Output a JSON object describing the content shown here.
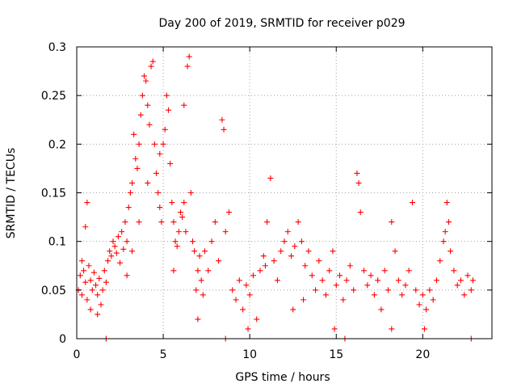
{
  "chart_data": {
    "type": "scatter",
    "title": "Day 200 of 2019, SRMTID for receiver p029",
    "xlabel": "GPS time / hours",
    "ylabel": "SRMTID / TECUs",
    "xlim": [
      0,
      24
    ],
    "ylim": [
      0,
      0.3
    ],
    "x_ticks": [
      0,
      5,
      10,
      15,
      20
    ],
    "x_tick_labels": [
      "0",
      "5",
      "10",
      "15",
      "20"
    ],
    "y_ticks": [
      0,
      0.05,
      0.1,
      0.15,
      0.2,
      0.25,
      0.3
    ],
    "y_tick_labels": [
      "0",
      "0.05",
      "0.1",
      "0.15",
      "0.2",
      "0.25",
      "0.3"
    ],
    "grid": true,
    "marker": "+",
    "color": "#ff0000",
    "series": [
      {
        "name": "SRMTID",
        "points": [
          [
            0.1,
            0.05
          ],
          [
            0.2,
            0.065
          ],
          [
            0.3,
            0.045
          ],
          [
            0.4,
            0.07
          ],
          [
            0.5,
            0.058
          ],
          [
            0.6,
            0.04
          ],
          [
            0.7,
            0.075
          ],
          [
            0.8,
            0.06
          ],
          [
            0.9,
            0.05
          ],
          [
            1.0,
            0.068
          ],
          [
            1.1,
            0.055
          ],
          [
            1.2,
            0.045
          ],
          [
            1.3,
            0.062
          ],
          [
            1.4,
            0.035
          ],
          [
            1.5,
            0.05
          ],
          [
            1.6,
            0.07
          ],
          [
            1.7,
            0.058
          ],
          [
            1.8,
            0.08
          ],
          [
            1.9,
            0.09
          ],
          [
            2.0,
            0.085
          ],
          [
            0.3,
            0.08
          ],
          [
            0.5,
            0.115
          ],
          [
            0.6,
            0.14
          ],
          [
            0.8,
            0.03
          ],
          [
            1.2,
            0.025
          ],
          [
            1.7,
            0.0
          ],
          [
            2.1,
            0.1
          ],
          [
            2.2,
            0.095
          ],
          [
            2.3,
            0.088
          ],
          [
            2.4,
            0.105
          ],
          [
            2.5,
            0.078
          ],
          [
            2.6,
            0.11
          ],
          [
            2.7,
            0.092
          ],
          [
            2.8,
            0.12
          ],
          [
            2.9,
            0.1
          ],
          [
            3.0,
            0.135
          ],
          [
            3.1,
            0.15
          ],
          [
            3.2,
            0.16
          ],
          [
            3.3,
            0.21
          ],
          [
            3.4,
            0.185
          ],
          [
            3.5,
            0.175
          ],
          [
            3.6,
            0.2
          ],
          [
            3.7,
            0.23
          ],
          [
            3.8,
            0.25
          ],
          [
            3.9,
            0.27
          ],
          [
            4.0,
            0.265
          ],
          [
            4.1,
            0.24
          ],
          [
            4.2,
            0.22
          ],
          [
            4.3,
            0.28
          ],
          [
            4.4,
            0.285
          ],
          [
            4.5,
            0.2
          ],
          [
            4.6,
            0.17
          ],
          [
            4.7,
            0.15
          ],
          [
            4.8,
            0.135
          ],
          [
            4.9,
            0.12
          ],
          [
            5.0,
            0.2
          ],
          [
            5.1,
            0.215
          ],
          [
            5.2,
            0.25
          ],
          [
            5.3,
            0.235
          ],
          [
            5.4,
            0.18
          ],
          [
            5.5,
            0.14
          ],
          [
            5.6,
            0.12
          ],
          [
            5.7,
            0.1
          ],
          [
            5.8,
            0.095
          ],
          [
            5.9,
            0.11
          ],
          [
            6.0,
            0.13
          ],
          [
            6.1,
            0.125
          ],
          [
            6.2,
            0.14
          ],
          [
            6.3,
            0.11
          ],
          [
            6.4,
            0.28
          ],
          [
            6.5,
            0.29
          ],
          [
            6.6,
            0.15
          ],
          [
            6.7,
            0.1
          ],
          [
            6.8,
            0.09
          ],
          [
            6.9,
            0.05
          ],
          [
            7.0,
            0.07
          ],
          [
            7.1,
            0.085
          ],
          [
            7.2,
            0.06
          ],
          [
            7.3,
            0.045
          ],
          [
            7.4,
            0.09
          ],
          [
            7.6,
            0.07
          ],
          [
            7.8,
            0.1
          ],
          [
            8.0,
            0.12
          ],
          [
            8.2,
            0.08
          ],
          [
            8.4,
            0.225
          ],
          [
            8.5,
            0.215
          ],
          [
            8.6,
            0.11
          ],
          [
            8.8,
            0.13
          ],
          [
            9.0,
            0.05
          ],
          [
            9.2,
            0.04
          ],
          [
            9.4,
            0.06
          ],
          [
            9.6,
            0.03
          ],
          [
            9.8,
            0.055
          ],
          [
            10.0,
            0.045
          ],
          [
            10.2,
            0.065
          ],
          [
            10.4,
            0.02
          ],
          [
            10.6,
            0.07
          ],
          [
            10.8,
            0.085
          ],
          [
            11.0,
            0.12
          ],
          [
            11.2,
            0.165
          ],
          [
            11.4,
            0.08
          ],
          [
            11.6,
            0.06
          ],
          [
            11.8,
            0.09
          ],
          [
            12.0,
            0.1
          ],
          [
            12.2,
            0.11
          ],
          [
            12.4,
            0.085
          ],
          [
            12.6,
            0.095
          ],
          [
            12.8,
            0.12
          ],
          [
            13.0,
            0.1
          ],
          [
            13.2,
            0.075
          ],
          [
            13.4,
            0.09
          ],
          [
            13.6,
            0.065
          ],
          [
            13.8,
            0.05
          ],
          [
            14.0,
            0.08
          ],
          [
            14.2,
            0.06
          ],
          [
            14.4,
            0.045
          ],
          [
            14.6,
            0.07
          ],
          [
            14.8,
            0.09
          ],
          [
            15.0,
            0.055
          ],
          [
            15.2,
            0.065
          ],
          [
            15.4,
            0.04
          ],
          [
            15.6,
            0.06
          ],
          [
            15.8,
            0.075
          ],
          [
            16.0,
            0.05
          ],
          [
            16.2,
            0.17
          ],
          [
            16.4,
            0.13
          ],
          [
            16.6,
            0.07
          ],
          [
            16.8,
            0.055
          ],
          [
            17.0,
            0.065
          ],
          [
            17.2,
            0.045
          ],
          [
            17.4,
            0.06
          ],
          [
            17.6,
            0.03
          ],
          [
            17.8,
            0.07
          ],
          [
            18.0,
            0.05
          ],
          [
            18.2,
            0.12
          ],
          [
            18.4,
            0.09
          ],
          [
            18.6,
            0.06
          ],
          [
            18.8,
            0.045
          ],
          [
            19.0,
            0.055
          ],
          [
            19.2,
            0.07
          ],
          [
            19.4,
            0.14
          ],
          [
            19.6,
            0.05
          ],
          [
            19.8,
            0.035
          ],
          [
            20.0,
            0.045
          ],
          [
            20.2,
            0.03
          ],
          [
            20.4,
            0.05
          ],
          [
            20.6,
            0.04
          ],
          [
            20.8,
            0.06
          ],
          [
            21.0,
            0.08
          ],
          [
            21.2,
            0.1
          ],
          [
            21.4,
            0.14
          ],
          [
            21.5,
            0.12
          ],
          [
            21.6,
            0.09
          ],
          [
            21.8,
            0.07
          ],
          [
            22.0,
            0.055
          ],
          [
            22.2,
            0.06
          ],
          [
            22.4,
            0.045
          ],
          [
            22.6,
            0.065
          ],
          [
            22.8,
            0.05
          ],
          [
            22.9,
            0.06
          ],
          [
            8.6,
            0.0
          ],
          [
            15.5,
            0.0
          ],
          [
            22.8,
            0.0
          ],
          [
            2.9,
            0.065
          ],
          [
            3.6,
            0.12
          ],
          [
            4.1,
            0.16
          ],
          [
            5.6,
            0.07
          ],
          [
            7.0,
            0.02
          ],
          [
            9.9,
            0.01
          ],
          [
            12.5,
            0.03
          ],
          [
            14.9,
            0.01
          ],
          [
            16.3,
            0.16
          ],
          [
            18.2,
            0.01
          ],
          [
            20.1,
            0.01
          ],
          [
            21.3,
            0.11
          ],
          [
            10.9,
            0.075
          ],
          [
            13.1,
            0.04
          ],
          [
            6.2,
            0.24
          ],
          [
            4.8,
            0.19
          ],
          [
            3.2,
            0.09
          ]
        ]
      }
    ]
  }
}
